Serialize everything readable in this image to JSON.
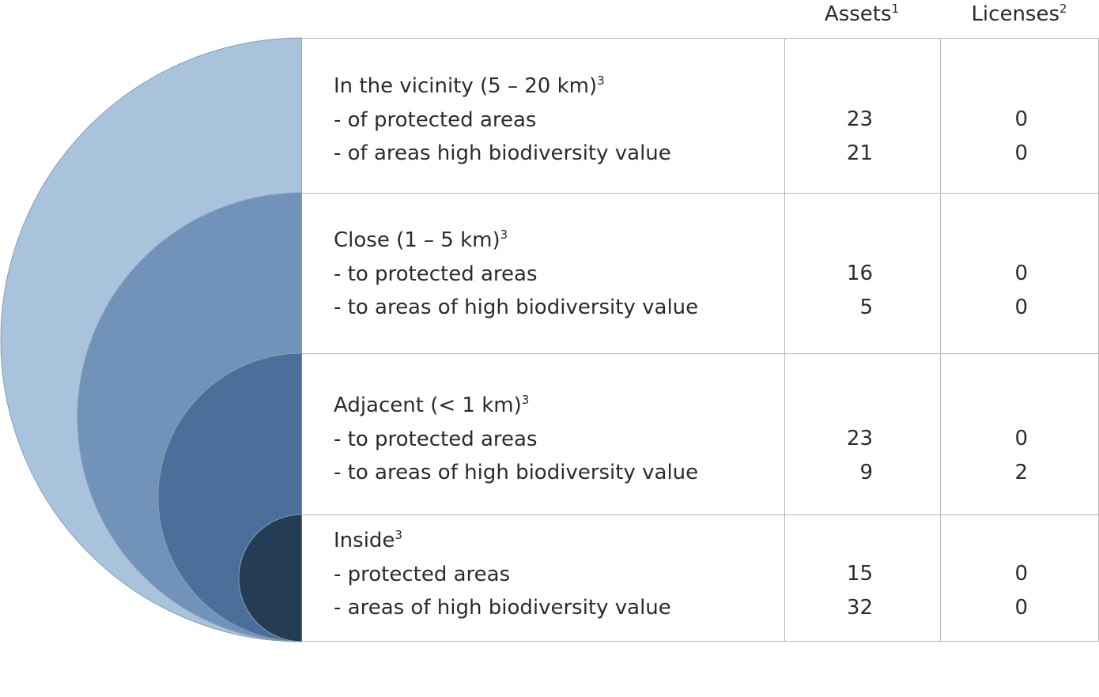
{
  "columns": {
    "assets": {
      "label": "Assets",
      "footnote": "1"
    },
    "licenses": {
      "label": "Licenses",
      "footnote": "2"
    }
  },
  "rings": {
    "colors": [
      "#a9c3dc",
      "#7293b9",
      "#4a6f9b",
      "#243d55"
    ],
    "outline": "#8a9db3"
  },
  "rows": [
    {
      "title": "In the vicinity (5 – 20 km)",
      "footnote": "3",
      "items": [
        {
          "label": "- of protected areas",
          "assets": "23",
          "licenses": "0"
        },
        {
          "label": "- of areas high biodiversity value",
          "assets": "21",
          "licenses": "0"
        }
      ]
    },
    {
      "title": "Close (1 – 5 km)",
      "footnote": "3",
      "items": [
        {
          "label": "- to protected areas",
          "assets": "16",
          "licenses": "0"
        },
        {
          "label": "- to areas of high biodiversity value",
          "assets": "5",
          "licenses": "0"
        }
      ]
    },
    {
      "title": "Adjacent (< 1 km)",
      "footnote": "3",
      "items": [
        {
          "label": "- to protected areas",
          "assets": "23",
          "licenses": "0"
        },
        {
          "label": "- to areas of high biodiversity value",
          "assets": "9",
          "licenses": "2"
        }
      ]
    },
    {
      "title": "Inside",
      "footnote": "3",
      "items": [
        {
          "label": "- protected areas",
          "assets": "15",
          "licenses": "0"
        },
        {
          "label": "- areas of high biodiversity value",
          "assets": "32",
          "licenses": "0"
        }
      ]
    }
  ]
}
